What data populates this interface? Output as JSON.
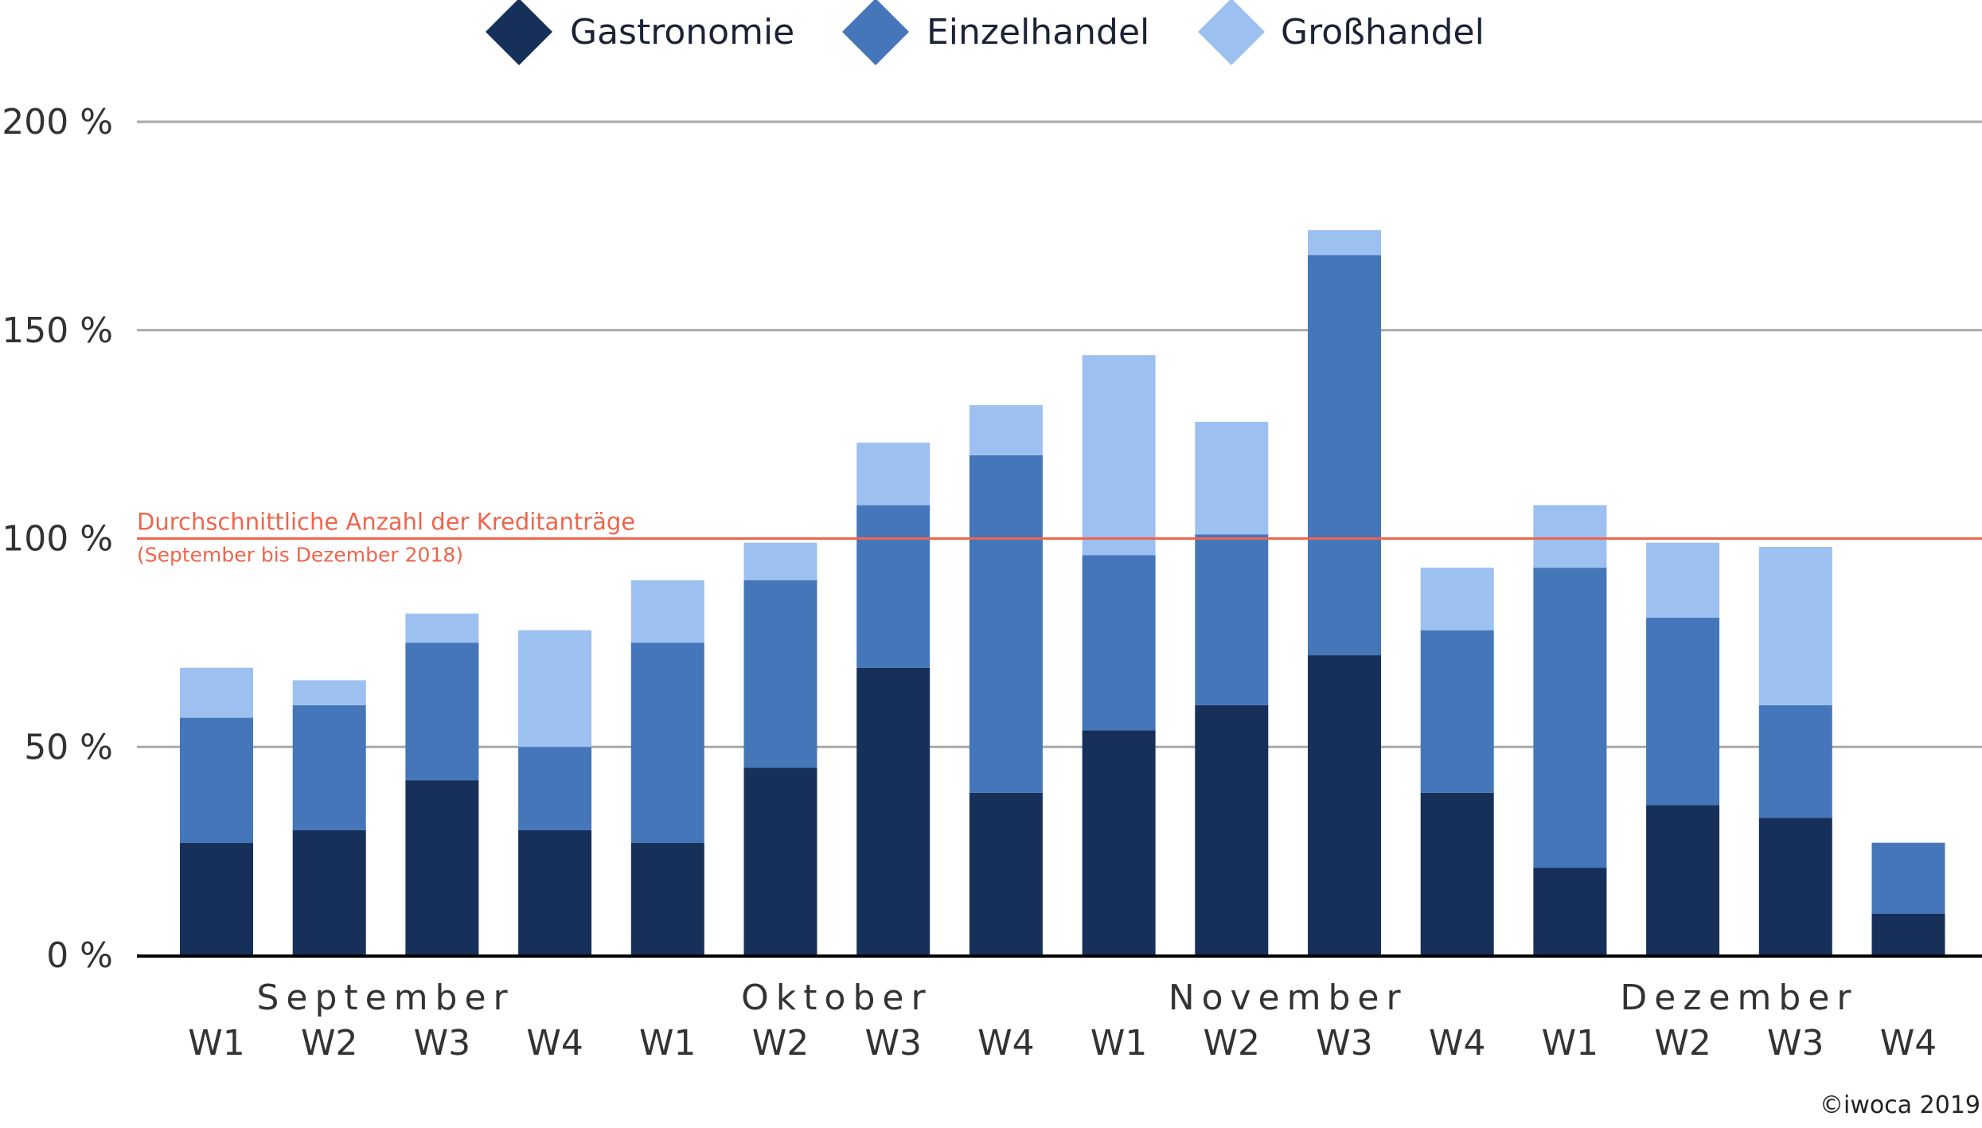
{
  "chart_data": {
    "type": "bar",
    "stacked": true,
    "title": "",
    "xlabel": "",
    "ylabel": "",
    "ylim": [
      0,
      200
    ],
    "y_ticks": [
      "0 %",
      "50 %",
      "100 %",
      "150 %",
      "200 %"
    ],
    "y_tick_values": [
      0,
      50,
      100,
      150,
      200
    ],
    "grid": true,
    "legend_position": "top-center",
    "months": [
      "September",
      "Oktober",
      "November",
      "Dezember"
    ],
    "weeks": [
      "W1",
      "W2",
      "W3",
      "W4"
    ],
    "series": [
      {
        "name": "Gastronomie",
        "color": "#17305a",
        "values": [
          27,
          30,
          42,
          30,
          27,
          45,
          69,
          39,
          54,
          60,
          72,
          39,
          21,
          36,
          33,
          10
        ]
      },
      {
        "name": "Einzelhandel",
        "color": "#4476b9",
        "values": [
          30,
          30,
          33,
          20,
          48,
          45,
          39,
          81,
          42,
          41,
          96,
          39,
          72,
          45,
          27,
          17
        ]
      },
      {
        "name": "Großhandel",
        "color": "#9cc0f0",
        "values": [
          12,
          6,
          7,
          28,
          15,
          9,
          15,
          12,
          48,
          27,
          6,
          15,
          15,
          18,
          38,
          0
        ]
      }
    ],
    "reference_line": {
      "value": 100,
      "color": "#f0644c",
      "label": "Durchschnittliche Anzahl der Kreditanträge",
      "sublabel": "(September bis Dezember 2018)"
    }
  },
  "copyright": "©iwoca 2019"
}
